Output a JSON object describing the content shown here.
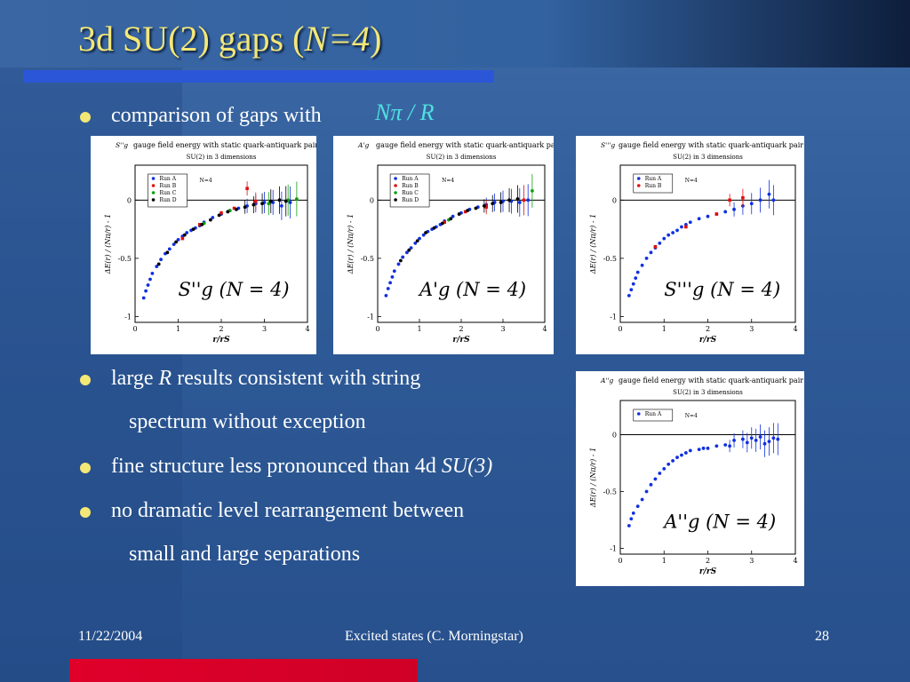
{
  "slide": {
    "title_main": "3d SU(2) gaps   (",
    "title_italic": "N=4",
    "title_close": ")"
  },
  "bullets": [
    {
      "text": "comparison of gaps with"
    },
    {
      "text_a": "large ",
      "text_italic": "R",
      "text_b": " results consistent with string"
    },
    {
      "text": "spectrum without exception"
    },
    {
      "text_a": "fine structure less pronounced than 4d ",
      "text_italic": "SU(3)"
    },
    {
      "text": "no dramatic level rearrangement between"
    },
    {
      "text": "small and large separations"
    }
  ],
  "formula_npr": "Nπ / R",
  "footer": {
    "date": "11/22/2004",
    "center": "Excited states (C. Morningstar)",
    "page": "28"
  },
  "colors": {
    "title": "#f3e776",
    "accent_blue": "#2b56d8",
    "accent_red": "#e0002a",
    "formula": "#4ee0e0"
  },
  "chart_data": [
    {
      "type": "scatter",
      "title": "gauge field energy with static quark-antiquark pair",
      "state_symbol": "S''g",
      "subtitle": "SU(2) in 3 dimensions",
      "note": "N=4",
      "label": "S''g (N = 4)",
      "xlabel": "r/rS",
      "ylabel": "ΔE(r) / (Nπ/r) - 1",
      "xlim": [
        0,
        4
      ],
      "ylim": [
        -1.05,
        0.3
      ],
      "xticks": [
        "0",
        "1",
        "2",
        "3",
        "4"
      ],
      "yticks": [
        {
          "v": 0,
          "t": "0"
        },
        {
          "v": -0.5,
          "t": "-0.5"
        },
        {
          "v": -1,
          "t": "-1"
        }
      ],
      "legend": [
        {
          "name": "Run A",
          "color": "#1030e0",
          "marker": "circle"
        },
        {
          "name": "Run B",
          "color": "#e01010",
          "marker": "square"
        },
        {
          "name": "Run C",
          "color": "#10a010",
          "marker": "triangle"
        },
        {
          "name": "Run D",
          "color": "#000000",
          "marker": "tri-down"
        }
      ],
      "series": [
        {
          "name": "Run A",
          "color": "#1030e0",
          "points": [
            [
              0.2,
              -0.84
            ],
            [
              0.25,
              -0.78
            ],
            [
              0.3,
              -0.73
            ],
            [
              0.35,
              -0.68
            ],
            [
              0.4,
              -0.63
            ],
            [
              0.5,
              -0.57
            ],
            [
              0.6,
              -0.51
            ],
            [
              0.7,
              -0.46
            ],
            [
              0.8,
              -0.42
            ],
            [
              0.9,
              -0.38
            ],
            [
              1.0,
              -0.34
            ],
            [
              1.1,
              -0.31
            ],
            [
              1.2,
              -0.28
            ],
            [
              1.3,
              -0.26
            ],
            [
              1.4,
              -0.24
            ],
            [
              1.5,
              -0.22
            ],
            [
              1.6,
              -0.19
            ],
            [
              1.8,
              -0.15
            ],
            [
              2.0,
              -0.12
            ],
            [
              2.2,
              -0.09
            ],
            [
              2.4,
              -0.07
            ],
            [
              2.6,
              -0.05
            ],
            [
              2.8,
              -0.03
            ],
            [
              3.0,
              -0.02
            ],
            [
              3.2,
              -0.02
            ],
            [
              3.4,
              -0.05
            ],
            [
              3.6,
              -0.02
            ]
          ]
        },
        {
          "name": "Run B",
          "color": "#e01010",
          "points": [
            [
              1.1,
              -0.33
            ],
            [
              1.5,
              -0.21
            ],
            [
              2.0,
              -0.11
            ],
            [
              2.3,
              -0.07
            ],
            [
              2.6,
              0.1
            ],
            [
              2.8,
              -0.01
            ]
          ]
        },
        {
          "name": "Run C",
          "color": "#10a010",
          "points": [
            [
              1.6,
              -0.2
            ],
            [
              2.2,
              -0.09
            ],
            [
              3.1,
              -0.03
            ],
            [
              3.55,
              0.0
            ],
            [
              3.75,
              0.01
            ]
          ]
        },
        {
          "name": "Run D",
          "color": "#000000",
          "points": [
            [
              0.55,
              -0.55
            ],
            [
              0.75,
              -0.45
            ],
            [
              0.95,
              -0.36
            ],
            [
              1.15,
              -0.3
            ],
            [
              1.35,
              -0.25
            ],
            [
              1.55,
              -0.21
            ],
            [
              1.75,
              -0.17
            ],
            [
              1.95,
              -0.13
            ],
            [
              2.15,
              -0.1
            ],
            [
              2.35,
              -0.08
            ],
            [
              2.55,
              -0.06
            ],
            [
              2.75,
              -0.04
            ],
            [
              2.95,
              -0.03
            ],
            [
              3.15,
              -0.01
            ],
            [
              3.35,
              0.0
            ],
            [
              3.5,
              -0.01
            ]
          ]
        }
      ]
    },
    {
      "type": "scatter",
      "title": "gauge field energy with static quark-antiquark pair",
      "state_symbol": "A'g",
      "subtitle": "SU(2) in 3 dimensions",
      "note": "N=4",
      "label": "A'g (N = 4)",
      "xlabel": "r/rS",
      "ylabel": "ΔE(r) / (Nπ/r) - 1",
      "xlim": [
        0,
        4
      ],
      "ylim": [
        -1.05,
        0.3
      ],
      "xticks": [
        "0",
        "1",
        "2",
        "3",
        "4"
      ],
      "yticks": [
        {
          "v": 0,
          "t": "0"
        },
        {
          "v": -0.5,
          "t": "-0.5"
        },
        {
          "v": -1,
          "t": "-1"
        }
      ],
      "legend": [
        {
          "name": "Run A",
          "color": "#1030e0",
          "marker": "circle"
        },
        {
          "name": "Run B",
          "color": "#e01010",
          "marker": "square"
        },
        {
          "name": "Run C",
          "color": "#10a010",
          "marker": "triangle"
        },
        {
          "name": "Run D",
          "color": "#000000",
          "marker": "tri-down"
        }
      ],
      "series": [
        {
          "name": "Run A",
          "color": "#1030e0",
          "points": [
            [
              0.2,
              -0.82
            ],
            [
              0.25,
              -0.76
            ],
            [
              0.3,
              -0.71
            ],
            [
              0.35,
              -0.66
            ],
            [
              0.4,
              -0.61
            ],
            [
              0.5,
              -0.55
            ],
            [
              0.6,
              -0.49
            ],
            [
              0.7,
              -0.45
            ],
            [
              0.8,
              -0.41
            ],
            [
              0.9,
              -0.37
            ],
            [
              1.0,
              -0.33
            ],
            [
              1.1,
              -0.3
            ],
            [
              1.2,
              -0.27
            ],
            [
              1.3,
              -0.25
            ],
            [
              1.4,
              -0.23
            ],
            [
              1.5,
              -0.21
            ],
            [
              1.6,
              -0.18
            ],
            [
              1.8,
              -0.14
            ],
            [
              2.0,
              -0.11
            ],
            [
              2.2,
              -0.08
            ],
            [
              2.4,
              -0.06
            ],
            [
              2.6,
              -0.04
            ],
            [
              2.8,
              -0.02
            ],
            [
              3.0,
              -0.01
            ],
            [
              3.2,
              -0.01
            ],
            [
              3.4,
              -0.02
            ],
            [
              3.6,
              0.0
            ]
          ]
        },
        {
          "name": "Run B",
          "color": "#e01010",
          "points": [
            [
              1.6,
              -0.19
            ],
            [
              2.1,
              -0.1
            ],
            [
              2.6,
              -0.06
            ],
            [
              3.5,
              0.0
            ]
          ]
        },
        {
          "name": "Run C",
          "color": "#10a010",
          "points": [
            [
              1.7,
              -0.17
            ],
            [
              3.7,
              0.08
            ]
          ]
        },
        {
          "name": "Run D",
          "color": "#000000",
          "points": [
            [
              0.55,
              -0.52
            ],
            [
              0.75,
              -0.43
            ],
            [
              0.95,
              -0.35
            ],
            [
              1.15,
              -0.28
            ],
            [
              1.35,
              -0.24
            ],
            [
              1.55,
              -0.2
            ],
            [
              1.75,
              -0.16
            ],
            [
              1.95,
              -0.12
            ],
            [
              2.15,
              -0.09
            ],
            [
              2.35,
              -0.07
            ],
            [
              2.55,
              -0.05
            ],
            [
              2.75,
              -0.03
            ],
            [
              2.95,
              -0.02
            ],
            [
              3.15,
              0.0
            ],
            [
              3.35,
              0.01
            ]
          ]
        }
      ]
    },
    {
      "type": "scatter",
      "title": "gauge field energy with static quark-antiquark pair",
      "state_symbol": "S'''g",
      "subtitle": "SU(2) in 3 dimensions",
      "note": "N=4",
      "label": "S'''g (N = 4)",
      "xlabel": "r/rS",
      "ylabel": "ΔE(r) / (Nπ/r) - 1",
      "xlim": [
        0,
        4
      ],
      "ylim": [
        -1.05,
        0.3
      ],
      "xticks": [
        "0",
        "1",
        "2",
        "3",
        "4"
      ],
      "yticks": [
        {
          "v": 0,
          "t": "0"
        },
        {
          "v": -0.5,
          "t": "-0.5"
        },
        {
          "v": -1,
          "t": "-1"
        }
      ],
      "legend": [
        {
          "name": "Run A",
          "color": "#1030e0",
          "marker": "circle"
        },
        {
          "name": "Run B",
          "color": "#e01010",
          "marker": "square"
        }
      ],
      "series": [
        {
          "name": "Run A",
          "color": "#1030e0",
          "points": [
            [
              0.2,
              -0.82
            ],
            [
              0.25,
              -0.77
            ],
            [
              0.3,
              -0.72
            ],
            [
              0.35,
              -0.67
            ],
            [
              0.4,
              -0.62
            ],
            [
              0.5,
              -0.56
            ],
            [
              0.6,
              -0.5
            ],
            [
              0.7,
              -0.45
            ],
            [
              0.8,
              -0.41
            ],
            [
              0.9,
              -0.37
            ],
            [
              1.0,
              -0.33
            ],
            [
              1.1,
              -0.3
            ],
            [
              1.2,
              -0.28
            ],
            [
              1.3,
              -0.26
            ],
            [
              1.4,
              -0.23
            ],
            [
              1.5,
              -0.21
            ],
            [
              1.6,
              -0.19
            ],
            [
              1.8,
              -0.16
            ],
            [
              2.0,
              -0.14
            ],
            [
              2.2,
              -0.12
            ],
            [
              2.4,
              -0.1
            ],
            [
              2.6,
              -0.08
            ],
            [
              2.8,
              -0.05
            ],
            [
              3.0,
              -0.03
            ],
            [
              3.2,
              0.0
            ],
            [
              3.4,
              0.05
            ],
            [
              3.5,
              0.0
            ]
          ]
        },
        {
          "name": "Run B",
          "color": "#e01010",
          "points": [
            [
              0.8,
              -0.4
            ],
            [
              1.5,
              -0.23
            ],
            [
              2.2,
              -0.12
            ],
            [
              2.5,
              0.0
            ],
            [
              2.8,
              0.02
            ]
          ]
        }
      ]
    },
    {
      "type": "scatter",
      "title": "gauge field energy with static quark-antiquark pair",
      "state_symbol": "A''g",
      "subtitle": "SU(2) in 3 dimensions",
      "note": "N=4",
      "label": "A''g (N = 4)",
      "xlabel": "r/rS",
      "ylabel": "ΔE(r) / (Nπ/r) - 1",
      "xlim": [
        0,
        4
      ],
      "ylim": [
        -1.05,
        0.3
      ],
      "xticks": [
        "0",
        "1",
        "2",
        "3",
        "4"
      ],
      "yticks": [
        {
          "v": 0,
          "t": "0"
        },
        {
          "v": -0.5,
          "t": "-0.5"
        },
        {
          "v": -1,
          "t": "-1"
        }
      ],
      "legend": [
        {
          "name": "Run A",
          "color": "#1030e0",
          "marker": "circle"
        }
      ],
      "series": [
        {
          "name": "Run A",
          "color": "#1030e0",
          "points": [
            [
              0.2,
              -0.8
            ],
            [
              0.25,
              -0.74
            ],
            [
              0.3,
              -0.69
            ],
            [
              0.4,
              -0.63
            ],
            [
              0.5,
              -0.57
            ],
            [
              0.6,
              -0.5
            ],
            [
              0.7,
              -0.44
            ],
            [
              0.8,
              -0.39
            ],
            [
              0.9,
              -0.34
            ],
            [
              1.0,
              -0.3
            ],
            [
              1.1,
              -0.26
            ],
            [
              1.2,
              -0.23
            ],
            [
              1.3,
              -0.2
            ],
            [
              1.4,
              -0.18
            ],
            [
              1.5,
              -0.16
            ],
            [
              1.6,
              -0.14
            ],
            [
              1.8,
              -0.13
            ],
            [
              1.9,
              -0.12
            ],
            [
              2.0,
              -0.12
            ],
            [
              2.2,
              -0.1
            ],
            [
              2.4,
              -0.09
            ],
            [
              2.5,
              -0.1
            ],
            [
              2.6,
              -0.05
            ],
            [
              2.8,
              -0.04
            ],
            [
              2.9,
              -0.07
            ],
            [
              3.0,
              -0.03
            ],
            [
              3.1,
              -0.05
            ],
            [
              3.2,
              -0.02
            ],
            [
              3.3,
              -0.08
            ],
            [
              3.4,
              -0.06
            ],
            [
              3.5,
              -0.03
            ],
            [
              3.6,
              -0.04
            ]
          ]
        }
      ]
    }
  ]
}
